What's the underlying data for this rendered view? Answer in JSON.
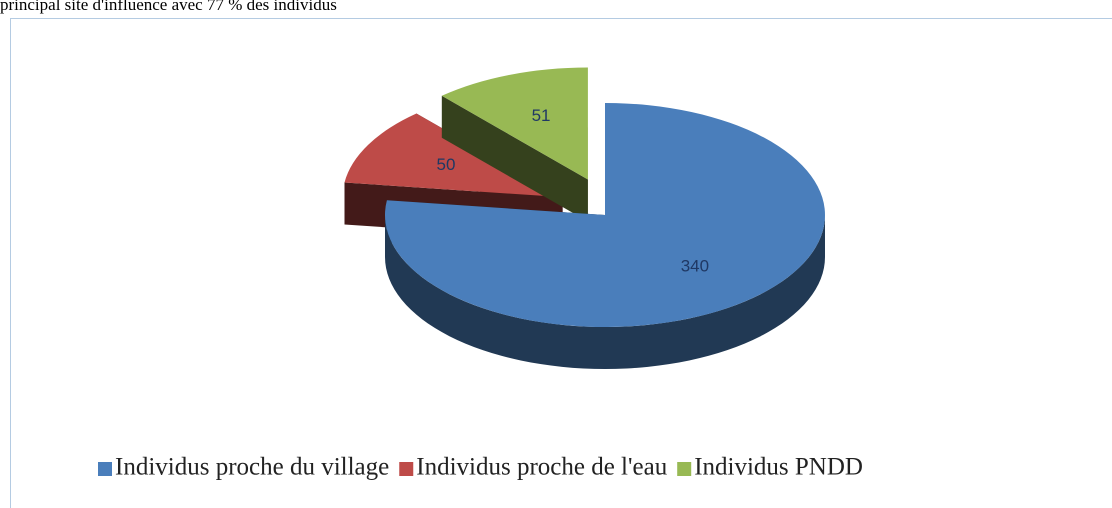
{
  "caption": "principal site d'influence avec 77 % des individus",
  "chart_data": {
    "type": "pie",
    "categories": [
      "Individus proche du village",
      "Individus proche de l'eau",
      "Individus PNDD"
    ],
    "values": [
      340,
      50,
      51
    ],
    "colors": [
      "#4a7ebb",
      "#be4b48",
      "#98b954"
    ],
    "explode": [
      false,
      true,
      true
    ],
    "legend": "bottom"
  }
}
